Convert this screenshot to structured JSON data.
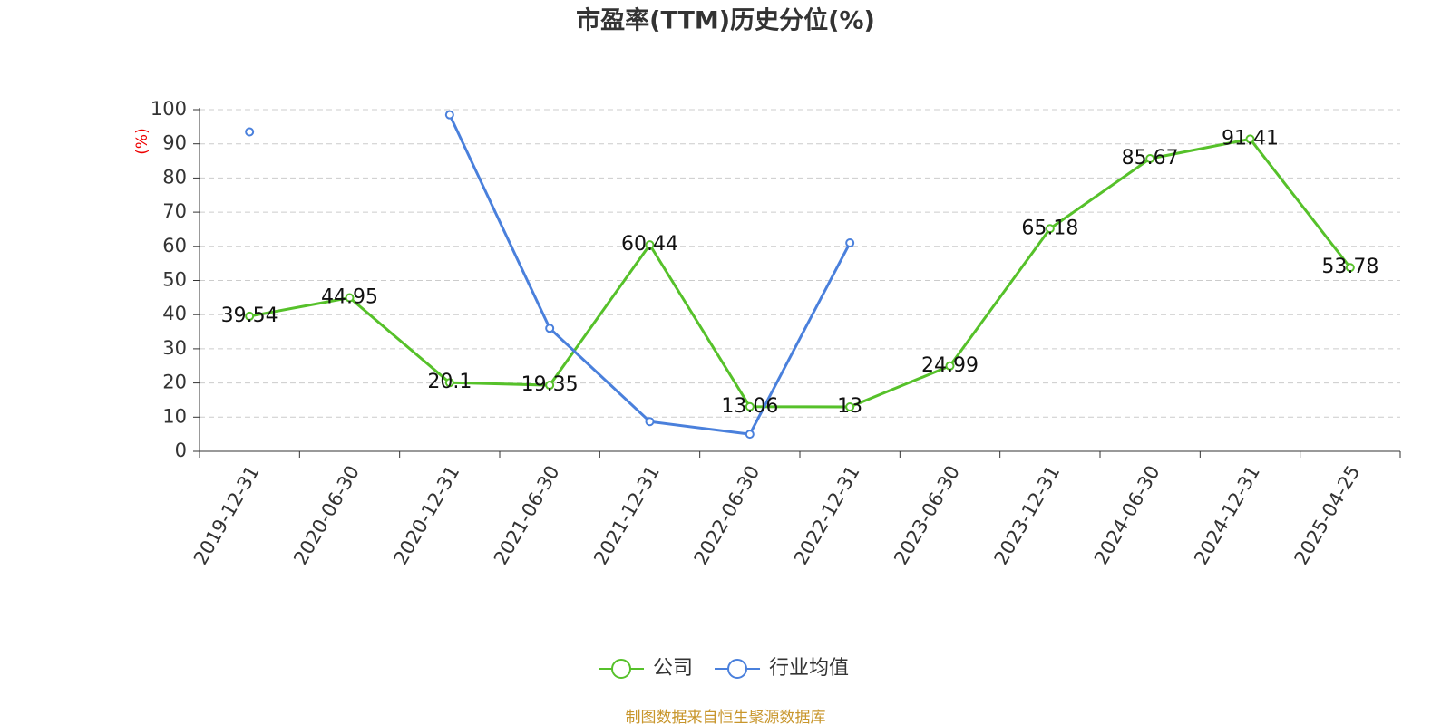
{
  "chart_data": {
    "type": "line",
    "title": "市盈率(TTM)历史分位(%)",
    "y_label": "(%)",
    "categories": [
      "2019-12-31",
      "2020-06-30",
      "2020-12-31",
      "2021-06-30",
      "2021-12-31",
      "2022-06-30",
      "2022-12-31",
      "2023-06-30",
      "2023-12-31",
      "2024-06-30",
      "2024-12-31",
      "2025-04-25"
    ],
    "series": [
      {
        "name": "公司",
        "color": "#56c12a",
        "values": [
          39.54,
          44.95,
          20.1,
          19.35,
          60.44,
          13.06,
          13,
          24.99,
          65.18,
          85.67,
          91.41,
          53.78
        ],
        "data_labels": true
      },
      {
        "name": "行业均值",
        "color": "#4a80dc",
        "values": [
          93.5,
          null,
          98.5,
          36,
          8.7,
          5,
          61,
          null,
          null,
          null,
          null,
          null
        ],
        "data_labels": false
      }
    ],
    "ylim": [
      0,
      100
    ],
    "yticks": [
      0,
      10,
      20,
      30,
      40,
      50,
      60,
      70,
      80,
      90,
      100
    ],
    "grid": true,
    "legend": "bottom",
    "source": "制图数据来自恒生聚源数据库"
  }
}
